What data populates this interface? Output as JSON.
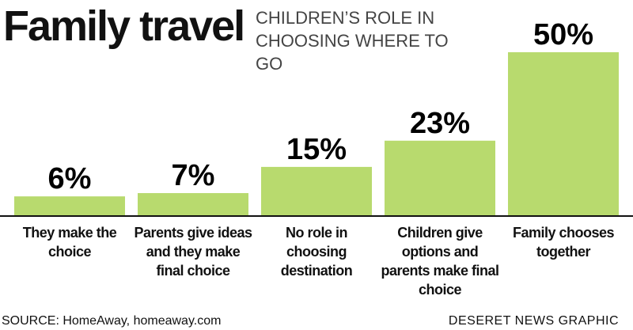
{
  "chart_data": {
    "type": "bar",
    "title": "Family travel",
    "subtitle": "CHILDREN’S ROLE IN CHOOSING WHERE TO GO",
    "categories": [
      "They make the choice",
      "Parents give ideas and they make final choice",
      "No role in choosing destination",
      "Children give options and parents make final choice",
      "Family chooses together"
    ],
    "values": [
      6,
      7,
      15,
      23,
      50
    ],
    "value_labels": [
      "6%",
      "7%",
      "15%",
      "23%",
      "50%"
    ],
    "color": "#b8da6e",
    "source": "SOURCE: HomeAway, homeaway.com",
    "credit": "DESERET NEWS GRAPHIC"
  }
}
